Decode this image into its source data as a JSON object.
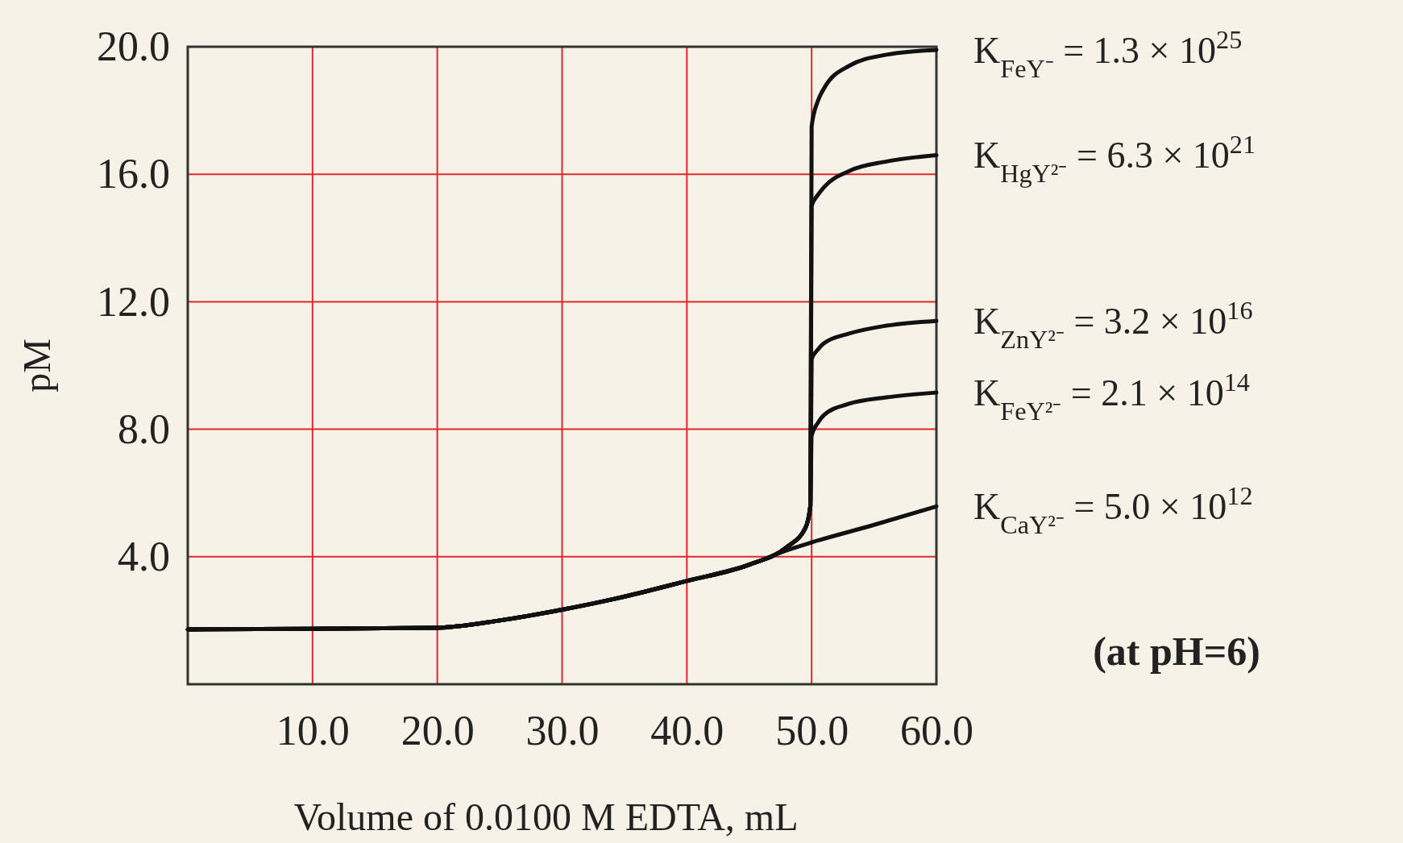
{
  "chart_data": {
    "type": "line",
    "xlabel": "Volume of 0.0100 M EDTA, mL",
    "ylabel": "pM",
    "xlim": [
      0,
      60
    ],
    "xticks": [
      {
        "value": 10,
        "label": "10.0"
      },
      {
        "value": 20,
        "label": "20.0"
      },
      {
        "value": 30,
        "label": "30.0"
      },
      {
        "value": 40,
        "label": "40.0"
      },
      {
        "value": 50,
        "label": "50.0"
      },
      {
        "value": 60,
        "label": "60.0"
      }
    ],
    "ylim": [
      0,
      20
    ],
    "yticks": [
      {
        "value": 4,
        "label": "4.0"
      },
      {
        "value": 8,
        "label": "8.0"
      },
      {
        "value": 12,
        "label": "12.0"
      },
      {
        "value": 16,
        "label": "16.0"
      },
      {
        "value": 20,
        "label": "20.0"
      }
    ],
    "grid": true,
    "legend": "right",
    "marker": "none",
    "line_style": "solid",
    "annotations": [
      "(at pH=6)"
    ],
    "series": [
      {
        "name": "K$_{FeY⁻}$ = 1.3 × 10$^{25}$",
        "color": "#111111",
        "x": [
          0,
          10,
          20,
          25,
          30,
          35,
          40,
          45,
          48,
          49.5,
          49.9,
          50,
          50.5,
          51,
          53,
          56,
          60
        ],
        "values": [
          1.72,
          1.74,
          1.77,
          2.0,
          2.34,
          2.75,
          3.24,
          3.75,
          4.3,
          4.9,
          5.6,
          17.5,
          18.3,
          18.7,
          19.4,
          19.75,
          19.9
        ]
      },
      {
        "name": "K$_{HgY²⁻}$ = 6.3 × 10$^{21}$",
        "color": "#111111",
        "x": [
          0,
          10,
          20,
          25,
          30,
          35,
          40,
          45,
          48,
          49.5,
          49.9,
          50,
          50.5,
          51,
          53,
          56,
          60
        ],
        "values": [
          1.72,
          1.74,
          1.77,
          2.0,
          2.34,
          2.75,
          3.24,
          3.75,
          4.3,
          4.9,
          5.6,
          15.0,
          15.35,
          15.6,
          16.1,
          16.4,
          16.6
        ]
      },
      {
        "name": "K$_{ZnY²⁻}$ = 3.2 × 10$^{16}$",
        "color": "#111111",
        "x": [
          0,
          10,
          20,
          25,
          30,
          35,
          40,
          45,
          48,
          49.5,
          49.9,
          50,
          50.5,
          51,
          53,
          56,
          60
        ],
        "values": [
          1.72,
          1.74,
          1.77,
          2.0,
          2.34,
          2.75,
          3.24,
          3.75,
          4.3,
          4.9,
          5.6,
          10.2,
          10.5,
          10.7,
          11.0,
          11.25,
          11.4
        ]
      },
      {
        "name": "K$_{FeY²⁻}$ = 2.1 × 10$^{14}$",
        "color": "#111111",
        "x": [
          0,
          10,
          20,
          25,
          30,
          35,
          40,
          45,
          48,
          49.5,
          49.9,
          50,
          50.5,
          51,
          53,
          56,
          60
        ],
        "values": [
          1.72,
          1.74,
          1.77,
          2.0,
          2.34,
          2.75,
          3.24,
          3.75,
          4.3,
          4.9,
          5.6,
          7.8,
          8.2,
          8.45,
          8.8,
          9.0,
          9.15
        ]
      },
      {
        "name": "K$_{CaY²⁻}$ = 5.0 × 10$^{12}$",
        "color": "#111111",
        "x": [
          0,
          10,
          20,
          25,
          30,
          35,
          40,
          45,
          48,
          50,
          55,
          60
        ],
        "values": [
          1.72,
          1.74,
          1.77,
          2.0,
          2.34,
          2.75,
          3.24,
          3.75,
          4.2,
          4.45,
          5.0,
          5.58
        ]
      }
    ]
  }
}
